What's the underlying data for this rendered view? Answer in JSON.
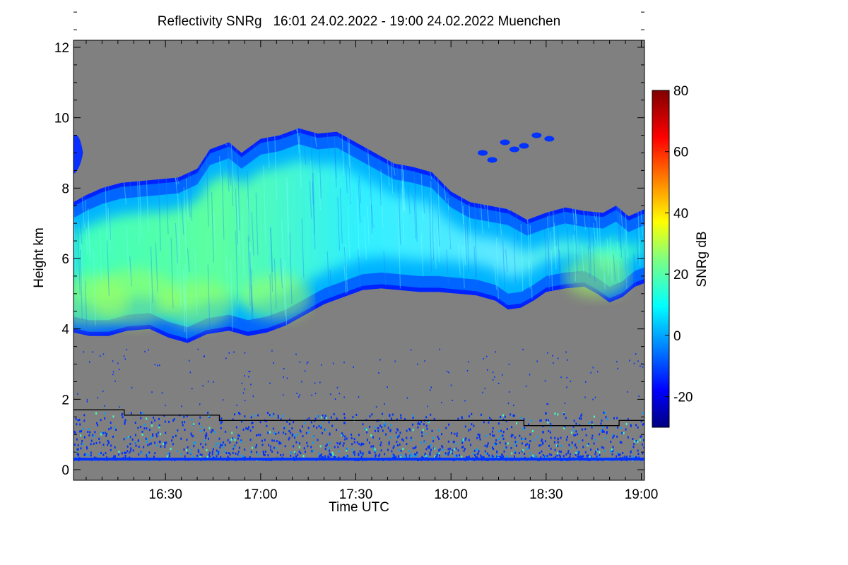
{
  "chart_data": {
    "type": "heatmap",
    "title": "Reflectivity SNRg   16:01 24.02.2022 - 19:00 24.02.2022 Muenchen",
    "xlabel": "Time UTC",
    "ylabel": "Height km",
    "colorbar_label": "SNRg dB",
    "x_range_min": [
      961,
      1141
    ],
    "x_ticks": [
      {
        "min": 990,
        "label": "16:30"
      },
      {
        "min": 1020,
        "label": "17:00"
      },
      {
        "min": 1050,
        "label": "17:30"
      },
      {
        "min": 1080,
        "label": "18:00"
      },
      {
        "min": 1110,
        "label": "18:30"
      },
      {
        "min": 1140,
        "label": "19:00"
      }
    ],
    "ylim": [
      -0.3,
      12.2
    ],
    "y_ticks": [
      0,
      2,
      4,
      6,
      8,
      10,
      12
    ],
    "colorbar_range": [
      -30,
      80
    ],
    "colorbar_ticks": [
      -20,
      0,
      20,
      40,
      60,
      80
    ],
    "background_value_color": "#808080",
    "cloud": {
      "base_km": [
        [
          961,
          3.9
        ],
        [
          966,
          3.8
        ],
        [
          972,
          3.8
        ],
        [
          978,
          3.95
        ],
        [
          985,
          4.0
        ],
        [
          991,
          3.75
        ],
        [
          997,
          3.6
        ],
        [
          1003,
          3.85
        ],
        [
          1010,
          3.95
        ],
        [
          1016,
          3.8
        ],
        [
          1022,
          3.9
        ],
        [
          1028,
          4.1
        ],
        [
          1034,
          4.4
        ],
        [
          1040,
          4.7
        ],
        [
          1046,
          4.9
        ],
        [
          1052,
          5.1
        ],
        [
          1058,
          5.15
        ],
        [
          1064,
          5.1
        ],
        [
          1070,
          5.05
        ],
        [
          1076,
          5.05
        ],
        [
          1082,
          5.0
        ],
        [
          1088,
          4.95
        ],
        [
          1094,
          4.8
        ],
        [
          1098,
          4.55
        ],
        [
          1102,
          4.6
        ],
        [
          1106,
          4.8
        ],
        [
          1110,
          5.05
        ],
        [
          1116,
          5.15
        ],
        [
          1122,
          5.2
        ],
        [
          1126,
          5.0
        ],
        [
          1130,
          4.75
        ],
        [
          1134,
          4.9
        ],
        [
          1138,
          5.2
        ],
        [
          1141,
          5.3
        ]
      ],
      "top_km": [
        [
          961,
          7.6
        ],
        [
          965,
          7.8
        ],
        [
          970,
          8.0
        ],
        [
          976,
          8.15
        ],
        [
          982,
          8.2
        ],
        [
          988,
          8.25
        ],
        [
          994,
          8.3
        ],
        [
          1000,
          8.55
        ],
        [
          1004,
          9.1
        ],
        [
          1010,
          9.3
        ],
        [
          1014,
          9.0
        ],
        [
          1020,
          9.4
        ],
        [
          1026,
          9.5
        ],
        [
          1032,
          9.7
        ],
        [
          1038,
          9.55
        ],
        [
          1044,
          9.6
        ],
        [
          1050,
          9.3
        ],
        [
          1056,
          9.0
        ],
        [
          1062,
          8.7
        ],
        [
          1068,
          8.6
        ],
        [
          1074,
          8.45
        ],
        [
          1080,
          7.9
        ],
        [
          1086,
          7.6
        ],
        [
          1092,
          7.5
        ],
        [
          1098,
          7.4
        ],
        [
          1104,
          7.1
        ],
        [
          1110,
          7.3
        ],
        [
          1116,
          7.45
        ],
        [
          1122,
          7.35
        ],
        [
          1128,
          7.3
        ],
        [
          1132,
          7.5
        ],
        [
          1136,
          7.2
        ],
        [
          1141,
          7.4
        ]
      ],
      "upper_patch_km": [
        [
          961,
          8.6,
          9.5
        ],
        [
          962,
          8.5,
          9.4
        ],
        [
          963,
          8.9,
          9.1
        ]
      ],
      "core_peak_snr_db": 25
    },
    "boundary_layer_top_km": [
      [
        961,
        1.7
      ],
      [
        977,
        1.7
      ],
      [
        977,
        1.55
      ],
      [
        1007,
        1.55
      ],
      [
        1007,
        1.4
      ],
      [
        1103,
        1.4
      ],
      [
        1103,
        1.25
      ],
      [
        1133,
        1.25
      ],
      [
        1133,
        1.4
      ],
      [
        1141,
        1.4
      ]
    ],
    "surface_clutter_line_km": 0.3
  }
}
